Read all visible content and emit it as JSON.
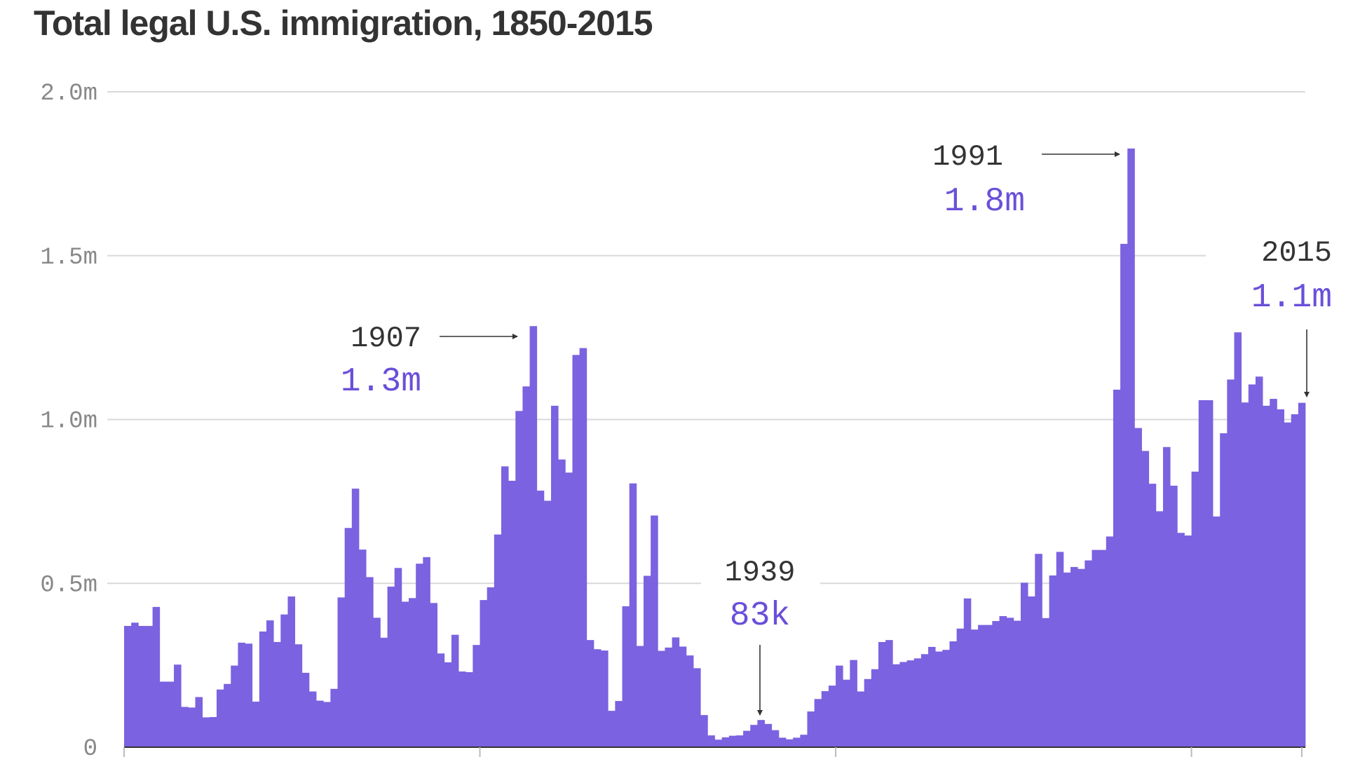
{
  "title": "Total legal U.S. immigration, 1850-2015",
  "colors": {
    "bar": "#7b62e0",
    "grid": "#d9d9d9",
    "axis": "#333333",
    "value_text": "#6a4fd9"
  },
  "chart_data": {
    "type": "bar",
    "title": "Total legal U.S. immigration, 1850-2015",
    "xlabel": "",
    "ylabel": "",
    "ylim": [
      0,
      2000000
    ],
    "y_ticks": [
      {
        "value": 0,
        "label": "0"
      },
      {
        "value": 500000,
        "label": "0.5m"
      },
      {
        "value": 1000000,
        "label": "1.0m"
      },
      {
        "value": 1500000,
        "label": "1.5m"
      },
      {
        "value": 2000000,
        "label": "2.0m"
      }
    ],
    "x_ticks": [
      1850,
      1900,
      1950,
      2000,
      2015
    ],
    "x_tick_labels_visible": false,
    "grid": true,
    "start_year": 1850,
    "values": [
      370000,
      380000,
      370000,
      370000,
      428000,
      200000,
      200000,
      252000,
      123000,
      121000,
      153000,
      91000,
      92000,
      176000,
      193000,
      249000,
      319000,
      316000,
      139000,
      353000,
      387000,
      321000,
      405000,
      460000,
      314000,
      227000,
      170000,
      142000,
      138000,
      178000,
      457000,
      669000,
      789000,
      603000,
      519000,
      395000,
      334000,
      490000,
      547000,
      444000,
      455000,
      560000,
      580000,
      440000,
      286000,
      259000,
      343000,
      231000,
      229000,
      312000,
      449000,
      488000,
      649000,
      857000,
      813000,
      1026000,
      1101000,
      1285000,
      783000,
      752000,
      1042000,
      878000,
      838000,
      1197000,
      1218000,
      327000,
      299000,
      295000,
      111000,
      141000,
      430000,
      805000,
      309000,
      523000,
      707000,
      294000,
      304000,
      335000,
      307000,
      280000,
      241000,
      98000,
      36000,
      23000,
      30000,
      35000,
      36000,
      50000,
      68000,
      83000,
      71000,
      52000,
      29000,
      24000,
      29000,
      38000,
      109000,
      147000,
      171000,
      188000,
      249000,
      206000,
      266000,
      170000,
      208000,
      238000,
      321000,
      327000,
      253000,
      260000,
      265000,
      271000,
      284000,
      306000,
      292000,
      297000,
      323000,
      362000,
      454000,
      359000,
      373000,
      373000,
      385000,
      400000,
      395000,
      386000,
      502000,
      460000,
      590000,
      394000,
      524000,
      596000,
      533000,
      550000,
      544000,
      570000,
      602000,
      602000,
      643000,
      1091000,
      1536000,
      1827000,
      974000,
      904000,
      804000,
      720000,
      916000,
      798000,
      654000,
      646000,
      841000,
      1059000,
      1059000,
      704000,
      958000,
      1122000,
      1266000,
      1052000,
      1107000,
      1131000,
      1042000,
      1063000,
      1031000,
      991000,
      1016000,
      1051000
    ],
    "annotations": [
      {
        "year": 1907,
        "year_label": "1907",
        "value_label": "1.3m"
      },
      {
        "year": 1939,
        "year_label": "1939",
        "value_label": "83k"
      },
      {
        "year": 1991,
        "year_label": "1991",
        "value_label": "1.8m"
      },
      {
        "year": 2015,
        "year_label": "2015",
        "value_label": "1.1m"
      }
    ]
  }
}
